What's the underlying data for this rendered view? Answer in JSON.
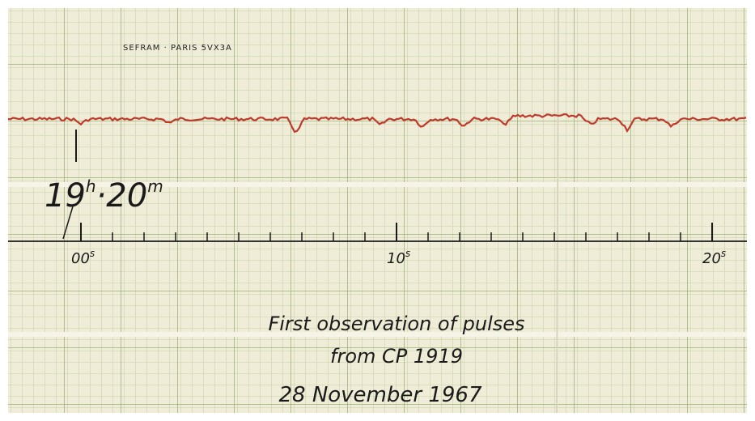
{
  "header": {
    "brand": "SEFRAM · PARIS 5VX3A"
  },
  "time_mark": {
    "hours": "19",
    "hours_unit": "h",
    "minutes": "·20",
    "minutes_unit": "m"
  },
  "axis": {
    "labels": [
      {
        "number": "00",
        "unit": "s"
      },
      {
        "number": "10",
        "unit": "s"
      },
      {
        "number": "20",
        "unit": "s"
      }
    ]
  },
  "caption": {
    "lines": [
      "First observation of pulses",
      "from CP 1919",
      "28 November 1967"
    ]
  }
}
